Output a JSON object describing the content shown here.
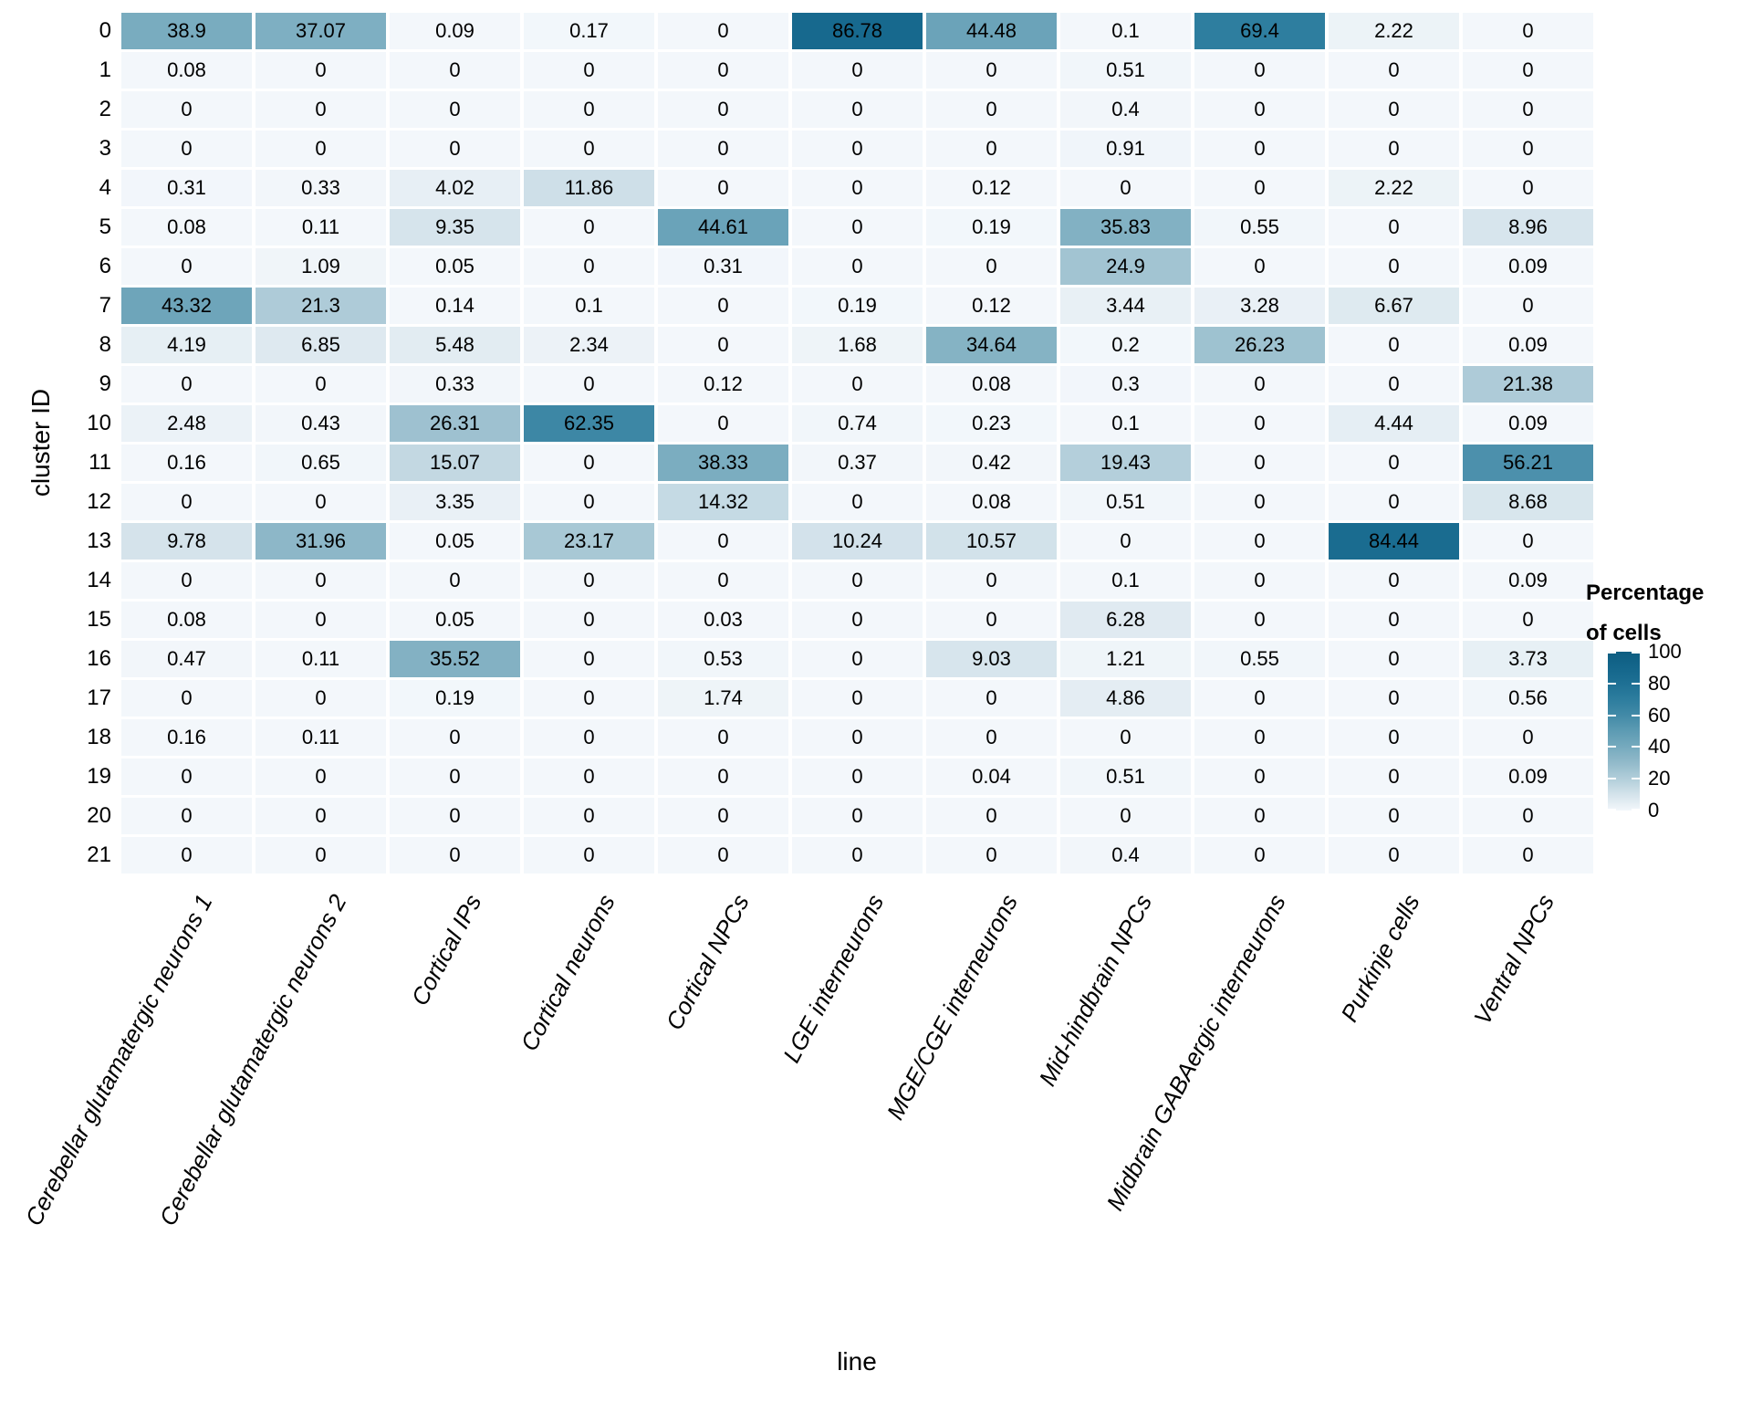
{
  "figure": {
    "x_axis_title": "line",
    "y_axis_title": "cluster ID",
    "legend_title_lines": [
      "Percentage",
      "of cells"
    ]
  },
  "colors": {
    "background": "#ffffff",
    "cell_text": "#000000",
    "scale_low": "#f3f7fb",
    "scale_high": "#0d5d81",
    "scale_stops": [
      {
        "v": 0,
        "rgb": [
          243,
          247,
          251
        ]
      },
      {
        "v": 10,
        "rgb": [
          212,
          227,
          235
        ]
      },
      {
        "v": 20,
        "rgb": [
          178,
          206,
          218
        ]
      },
      {
        "v": 30,
        "rgb": [
          146,
          186,
          202
        ]
      },
      {
        "v": 40,
        "rgb": [
          118,
          170,
          190
        ]
      },
      {
        "v": 50,
        "rgb": [
          93,
          155,
          179
        ]
      },
      {
        "v": 60,
        "rgb": [
          66,
          138,
          167
        ]
      },
      {
        "v": 70,
        "rgb": [
          45,
          125,
          158
        ]
      },
      {
        "v": 80,
        "rgb": [
          30,
          112,
          148
        ]
      },
      {
        "v": 90,
        "rgb": [
          20,
          102,
          139
        ]
      },
      {
        "v": 100,
        "rgb": [
          13,
          93,
          129
        ]
      }
    ]
  },
  "chart_data": {
    "type": "heatmap",
    "xlabel": "line",
    "ylabel": "cluster ID",
    "legend_title": "Percentage of cells",
    "color_scale": {
      "low": "#f3f7fb",
      "high": "#0d5d81",
      "domain": [
        0,
        100
      ],
      "legend_ticks": [
        100,
        80,
        60,
        40,
        20,
        0
      ],
      "legend_position": "right"
    },
    "rows": [
      "0",
      "1",
      "2",
      "3",
      "4",
      "5",
      "6",
      "7",
      "8",
      "9",
      "10",
      "11",
      "12",
      "13",
      "14",
      "15",
      "16",
      "17",
      "18",
      "19",
      "20",
      "21"
    ],
    "columns": [
      "Cerebellar glutamatergic neurons 1",
      "Cerebellar glutamatergic neurons 2",
      "Cortical IPs",
      "Cortical neurons",
      "Cortical NPCs",
      "LGE interneurons",
      "MGE/CGE interneurons",
      "Mid-hindbrain NPCs",
      "Midbrain GABAergic interneurons",
      "Purkinje cells",
      "Ventral NPCs"
    ],
    "values": [
      [
        38.9,
        37.07,
        0.09,
        0.17,
        0,
        86.78,
        44.48,
        0.1,
        69.4,
        2.22,
        0
      ],
      [
        0.08,
        0,
        0,
        0,
        0,
        0,
        0,
        0.51,
        0,
        0,
        0
      ],
      [
        0,
        0,
        0,
        0,
        0,
        0,
        0,
        0.4,
        0,
        0,
        0
      ],
      [
        0,
        0,
        0,
        0,
        0,
        0,
        0,
        0.91,
        0,
        0,
        0
      ],
      [
        0.31,
        0.33,
        4.02,
        11.86,
        0,
        0,
        0.12,
        0,
        0,
        2.22,
        0
      ],
      [
        0.08,
        0.11,
        9.35,
        0,
        44.61,
        0,
        0.19,
        35.83,
        0.55,
        0,
        8.96
      ],
      [
        0,
        1.09,
        0.05,
        0,
        0.31,
        0,
        0,
        24.9,
        0,
        0,
        0.09
      ],
      [
        43.32,
        21.3,
        0.14,
        0.1,
        0,
        0.19,
        0.12,
        3.44,
        3.28,
        6.67,
        0
      ],
      [
        4.19,
        6.85,
        5.48,
        2.34,
        0,
        1.68,
        34.64,
        0.2,
        26.23,
        0,
        0.09
      ],
      [
        0,
        0,
        0.33,
        0,
        0.12,
        0,
        0.08,
        0.3,
        0,
        0,
        21.38
      ],
      [
        2.48,
        0.43,
        26.31,
        62.35,
        0,
        0.74,
        0.23,
        0.1,
        0,
        4.44,
        0.09
      ],
      [
        0.16,
        0.65,
        15.07,
        0,
        38.33,
        0.37,
        0.42,
        19.43,
        0,
        0,
        56.21
      ],
      [
        0,
        0,
        3.35,
        0,
        14.32,
        0,
        0.08,
        0.51,
        0,
        0,
        8.68
      ],
      [
        9.78,
        31.96,
        0.05,
        23.17,
        0,
        10.24,
        10.57,
        0,
        0,
        84.44,
        0
      ],
      [
        0,
        0,
        0,
        0,
        0,
        0,
        0,
        0.1,
        0,
        0,
        0.09
      ],
      [
        0.08,
        0,
        0.05,
        0,
        0.03,
        0,
        0,
        6.28,
        0,
        0,
        0
      ],
      [
        0.47,
        0.11,
        35.52,
        0,
        0.53,
        0,
        9.03,
        1.21,
        0.55,
        0,
        3.73
      ],
      [
        0,
        0,
        0.19,
        0,
        1.74,
        0,
        0,
        4.86,
        0,
        0,
        0.56
      ],
      [
        0.16,
        0.11,
        0,
        0,
        0,
        0,
        0,
        0,
        0,
        0,
        0
      ],
      [
        0,
        0,
        0,
        0,
        0,
        0,
        0.04,
        0.51,
        0,
        0,
        0.09
      ],
      [
        0,
        0,
        0,
        0,
        0,
        0,
        0,
        0,
        0,
        0,
        0
      ],
      [
        0,
        0,
        0,
        0,
        0,
        0,
        0,
        0.4,
        0,
        0,
        0
      ]
    ]
  }
}
